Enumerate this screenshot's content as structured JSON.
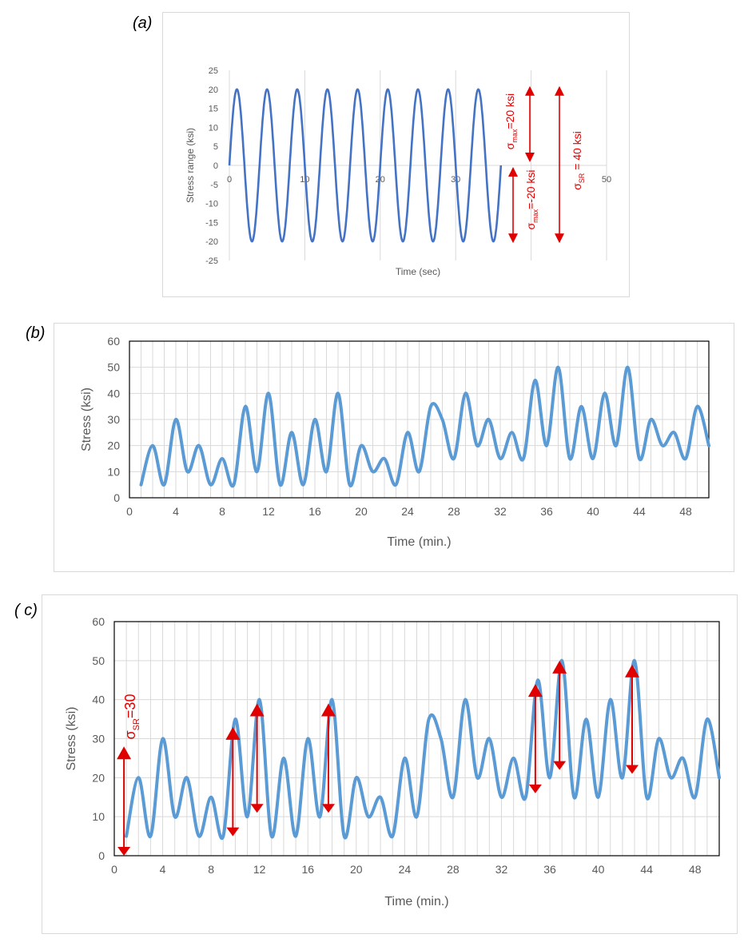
{
  "panels": {
    "a": "(a)",
    "b": "(b)",
    "c": "( c)"
  },
  "colors": {
    "series_a": "#4472c4",
    "series_bc": "#5b9bd5",
    "arrow": "#e00000",
    "grid": "#d9d9d9"
  },
  "chart_data": [
    {
      "id": "a",
      "type": "line",
      "title": "",
      "xlabel": "Time (sec)",
      "ylabel": "Stress range (ksi)",
      "xlim": [
        0,
        50
      ],
      "ylim": [
        -25,
        25
      ],
      "xticks": [
        0,
        10,
        20,
        30,
        40,
        50
      ],
      "xtick_labels": [
        "0",
        "10",
        "20",
        "30",
        "",
        "50"
      ],
      "yticks": [
        25,
        20,
        15,
        10,
        5,
        0,
        -5,
        -10,
        -15,
        -20,
        -25
      ],
      "series": [
        {
          "name": "Stress",
          "type": "sine",
          "amplitude": 20,
          "period_sec": 4,
          "x_start": 0,
          "x_end": 36
        }
      ],
      "annotations": {
        "smax_pos": {
          "sigma": "σ",
          "sub": "max",
          "rest": "=20 ksi",
          "from": 0,
          "to": 20
        },
        "smax_neg": {
          "sigma": "σ",
          "sub": "max",
          "rest": "=-20 ksi",
          "from": 0,
          "to": -20
        },
        "ssr": {
          "sigma": "σ",
          "sub": "SR",
          "rest": " = 40 ksi",
          "from": -20,
          "to": 20
        }
      }
    },
    {
      "id": "b",
      "type": "line",
      "title": "",
      "xlabel": "Time (min.)",
      "ylabel": "Stress (ksi)",
      "xlim": [
        0,
        50
      ],
      "ylim": [
        0,
        60
      ],
      "xticks": [
        0,
        4,
        8,
        12,
        16,
        20,
        24,
        28,
        32,
        36,
        40,
        44,
        48
      ],
      "yticks": [
        0,
        10,
        20,
        30,
        40,
        50,
        60
      ],
      "series": [
        {
          "name": "Stress",
          "x": [
            1,
            2,
            3,
            4,
            5,
            6,
            7,
            8,
            9,
            10,
            11,
            12,
            13,
            14,
            15,
            16,
            17,
            18,
            19,
            20,
            21,
            22,
            23,
            24,
            25,
            26,
            27,
            28,
            29,
            30,
            31,
            32,
            33,
            34,
            35,
            36,
            37,
            38,
            39,
            40,
            41,
            42,
            43,
            44,
            45,
            46,
            47,
            48,
            49,
            50
          ],
          "y": [
            5,
            20,
            5,
            30,
            10,
            20,
            5,
            15,
            5,
            35,
            10,
            40,
            5,
            25,
            5,
            30,
            10,
            40,
            5,
            20,
            10,
            15,
            5,
            25,
            10,
            35,
            30,
            15,
            40,
            20,
            30,
            15,
            25,
            15,
            45,
            20,
            50,
            15,
            35,
            15,
            40,
            20,
            50,
            15,
            30,
            20,
            25,
            15,
            35,
            20
          ]
        }
      ]
    },
    {
      "id": "c",
      "type": "line",
      "title": "",
      "xlabel": "Time (min.)",
      "ylabel": "Stress (ksi)",
      "xlim": [
        0,
        50
      ],
      "ylim": [
        0,
        60
      ],
      "xticks": [
        0,
        4,
        8,
        12,
        16,
        20,
        24,
        28,
        32,
        36,
        40,
        44,
        48
      ],
      "yticks": [
        0,
        10,
        20,
        30,
        40,
        50,
        60
      ],
      "series": [
        {
          "name": "Stress",
          "x": [
            1,
            2,
            3,
            4,
            5,
            6,
            7,
            8,
            9,
            10,
            11,
            12,
            13,
            14,
            15,
            16,
            17,
            18,
            19,
            20,
            21,
            22,
            23,
            24,
            25,
            26,
            27,
            28,
            29,
            30,
            31,
            32,
            33,
            34,
            35,
            36,
            37,
            38,
            39,
            40,
            41,
            42,
            43,
            44,
            45,
            46,
            47,
            48,
            49,
            50
          ],
          "y": [
            5,
            20,
            5,
            30,
            10,
            20,
            5,
            15,
            5,
            35,
            10,
            40,
            5,
            25,
            5,
            30,
            10,
            40,
            5,
            20,
            10,
            15,
            5,
            25,
            10,
            35,
            30,
            15,
            40,
            20,
            30,
            15,
            25,
            15,
            45,
            20,
            50,
            15,
            35,
            15,
            40,
            20,
            50,
            15,
            30,
            20,
            25,
            15,
            35,
            20
          ]
        }
      ],
      "ranges": [
        {
          "x": 0.8,
          "low": 0,
          "high": 28
        },
        {
          "x": 9.8,
          "low": 5,
          "high": 33
        },
        {
          "x": 11.8,
          "low": 11,
          "high": 39
        },
        {
          "x": 17.7,
          "low": 11,
          "high": 39
        },
        {
          "x": 34.8,
          "low": 16,
          "high": 44
        },
        {
          "x": 36.8,
          "low": 22,
          "high": 50
        },
        {
          "x": 42.8,
          "low": 21,
          "high": 49
        }
      ],
      "range_label": {
        "sigma": "σ",
        "sub": "SR",
        "rest": "=30"
      }
    }
  ]
}
